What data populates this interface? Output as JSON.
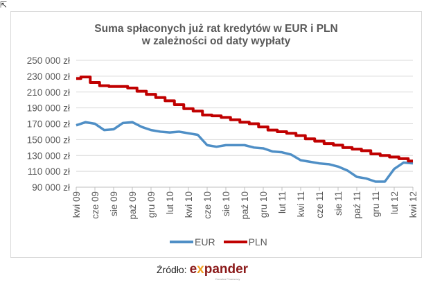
{
  "chart_data": {
    "type": "line",
    "title": "Suma spłaconych  już rat kredytów w EUR  i PLN",
    "subtitle": "w zależności od daty  wypłaty",
    "xlabel": "",
    "ylabel": "",
    "ylim": [
      90000,
      250000
    ],
    "yticks": [
      "250 000 zł",
      "230 000 zł",
      "210 000 zł",
      "190 000 zł",
      "170 000 zł",
      "150 000 zł",
      "130 000 zł",
      "110 000 zł",
      "90 000 zł"
    ],
    "xticks": [
      "kwi 09",
      "cze 09",
      "sie 09",
      "paź 09",
      "gru 09",
      "lut 10",
      "kwi 10",
      "cze 10",
      "sie 10",
      "paź 10",
      "gru 10",
      "lut 11",
      "kwi 11",
      "cze 11",
      "sie 11",
      "paź 11",
      "gru 11",
      "lut 12",
      "kwi 12"
    ],
    "grid": true,
    "legend": "bottom",
    "series": [
      {
        "name": "EUR",
        "color": "#4f8fc6",
        "step": false,
        "values": [
          168000,
          172000,
          170000,
          162000,
          163000,
          171000,
          172000,
          166000,
          162000,
          160000,
          159000,
          160000,
          158000,
          156000,
          143000,
          141000,
          143000,
          143000,
          143000,
          140000,
          139000,
          135000,
          134000,
          131000,
          124000,
          122000,
          120000,
          119000,
          116000,
          111000,
          103000,
          101000,
          97000,
          97000,
          113000,
          121000,
          120000
        ]
      },
      {
        "name": "PLN",
        "color": "#c00000",
        "step": true,
        "values": [
          227000,
          229000,
          222000,
          218000,
          217000,
          217000,
          215000,
          211000,
          207000,
          203000,
          199000,
          194000,
          189000,
          186000,
          181000,
          180000,
          178000,
          175000,
          172000,
          170000,
          166000,
          162000,
          160000,
          158000,
          155000,
          151000,
          148000,
          145000,
          143000,
          140000,
          138000,
          136000,
          132000,
          130000,
          128000,
          126000,
          123000
        ]
      }
    ]
  },
  "source": {
    "label": "Źródło:",
    "logo_text_a": "e",
    "logo_text_x": "x",
    "logo_text_b": "pander",
    "logo_tagline": "Doradca Finansowy"
  }
}
